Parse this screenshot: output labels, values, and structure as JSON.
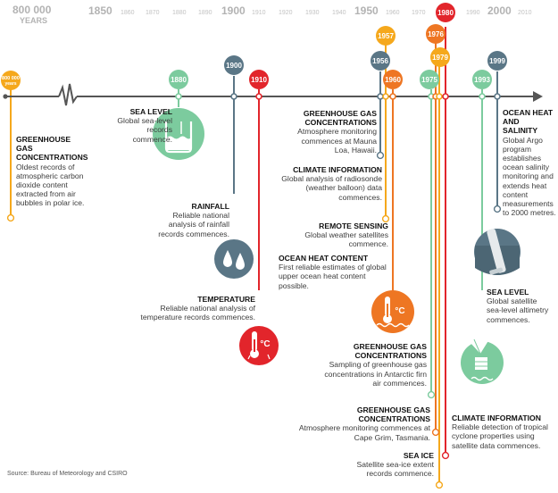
{
  "scale": {
    "start_label": "800 000",
    "start_sub": "YEARS",
    "years": [
      "1850",
      "1860",
      "1870",
      "1880",
      "1890",
      "1900",
      "1910",
      "1920",
      "1930",
      "1940",
      "1950",
      "1960",
      "1970",
      "1980",
      "1990",
      "2000",
      "2010"
    ],
    "major_years": [
      "1850",
      "1900",
      "1950",
      "2000"
    ]
  },
  "markers": [
    {
      "label": "800 000",
      "sub": "years",
      "color": "#f5a81c"
    },
    {
      "label": "1880",
      "color": "#7ccb9e"
    },
    {
      "label": "1900",
      "color": "#5a7686"
    },
    {
      "label": "1910",
      "color": "#e2252b"
    },
    {
      "label": "1956",
      "color": "#5a7686"
    },
    {
      "label": "1957",
      "color": "#f5a81c"
    },
    {
      "label": "1960",
      "color": "#ee7623"
    },
    {
      "label": "1975",
      "color": "#7ccb9e"
    },
    {
      "label": "1976",
      "color": "#ee7623"
    },
    {
      "label": "1979",
      "color": "#f5a81c"
    },
    {
      "label": "1980",
      "color": "#e2252b"
    },
    {
      "label": "1993",
      "color": "#7ccb9e"
    },
    {
      "label": "1999",
      "color": "#5a7686"
    }
  ],
  "events": [
    {
      "heading": "GREENHOUSE GAS CONCENTRATIONS",
      "text": "Oldest records of atmospheric carbon dioxide content extracted from air bubbles in polar ice."
    },
    {
      "heading": "SEA LEVEL",
      "text": "Global sea-level records commence."
    },
    {
      "heading": "RAINFALL",
      "text": "Reliable national analysis of rainfall records commences."
    },
    {
      "heading": "TEMPERATURE",
      "text": "Reliable national analysis of temperature records commences."
    },
    {
      "heading": "GREENHOUSE GAS CONCENTRATIONS",
      "text": "Atmosphere monitoring commences at Mauna Loa, Hawaii."
    },
    {
      "heading": "CLIMATE INFORMATION",
      "text": "Global analysis of radiosonde (weather balloon) data commences."
    },
    {
      "heading": "REMOTE SENSING",
      "text": "Global weather satellites commence."
    },
    {
      "heading": "OCEAN HEAT CONTENT",
      "text": "First reliable estimates of global upper ocean heat content possible."
    },
    {
      "heading": "GREENHOUSE GAS CONCENTRATIONS",
      "text": "Sampling of greenhouse gas concentrations in Antarctic firn air commences."
    },
    {
      "heading": "GREENHOUSE GAS CONCENTRATIONS",
      "text": "Atmosphere monitoring commences at Cape Grim, Tasmania."
    },
    {
      "heading": "SEA ICE",
      "text": "Satellite sea-ice extent records commence."
    },
    {
      "heading": "CLIMATE INFORMATION",
      "text": "Reliable detection of tropical cyclone properties using satellite data commences."
    },
    {
      "heading": "OCEAN HEAT AND SALINITY",
      "text": "Global Argo program establishes ocean salinity monitoring and extends heat content measurements to 2000 metres."
    },
    {
      "heading": "SEA LEVEL",
      "text": "Global satellite sea-level altimetry commences."
    }
  ],
  "icon_labels": {
    "celsius": "°C"
  },
  "source": "Source: Bureau of Meteorology and CSIRO"
}
